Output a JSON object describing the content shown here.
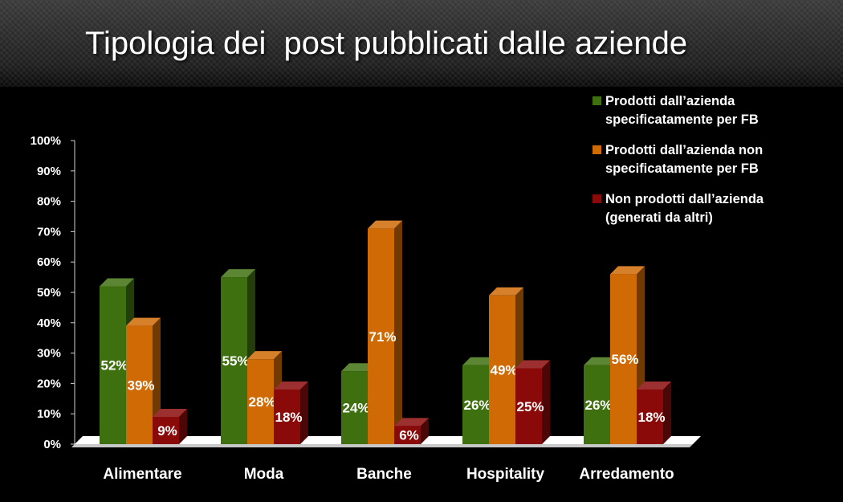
{
  "title": "Tipologia dei  post pubblicati dalle aziende",
  "legend": [
    {
      "label": "Prodotti dall’azienda\nspecificatamente per FB",
      "color": "#3f7010"
    },
    {
      "label": "Prodotti dall’azienda non\nspecificatamente per FB",
      "color": "#d06a05"
    },
    {
      "label": "Non prodotti dall’azienda\n(generati da altri)",
      "color": "#8a0a0a"
    }
  ],
  "chart_data": {
    "type": "bar",
    "title": "Tipologia dei  post pubblicati dalle aziende",
    "categories": [
      "Alimentare",
      "Moda",
      "Banche",
      "Hospitality",
      "Arredamento"
    ],
    "series": [
      {
        "name": "Prodotti dall’azienda specificatamente per FB",
        "color": "#3f7010",
        "values": [
          52,
          55,
          24,
          26,
          26
        ],
        "labels": [
          "52%",
          "55%",
          "24%",
          "26%",
          "26%"
        ]
      },
      {
        "name": "Prodotti dall’azienda non specificatamente per FB",
        "color": "#d06a05",
        "values": [
          39,
          28,
          71,
          49,
          56
        ],
        "labels": [
          "39%",
          "28%",
          "71%",
          "49%",
          "56%"
        ]
      },
      {
        "name": "Non prodotti dall’azienda (generati da altri)",
        "color": "#8a0a0a",
        "values": [
          9,
          18,
          6,
          25,
          18
        ],
        "labels": [
          "9%",
          "18%",
          "6%",
          "25%",
          "18%"
        ]
      }
    ],
    "yticks": [
      "0%",
      "10%",
      "20%",
      "30%",
      "40%",
      "50%",
      "60%",
      "70%",
      "80%",
      "90%",
      "100%"
    ],
    "ylim": [
      0,
      100
    ],
    "xlabel": "",
    "ylabel": "",
    "grid": false,
    "legend_position": "right"
  }
}
